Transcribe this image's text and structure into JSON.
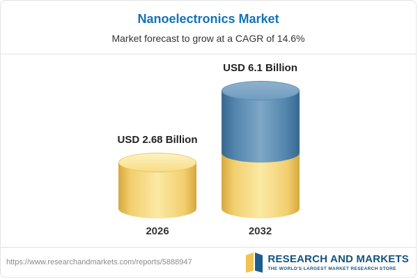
{
  "header": {
    "title": "Nanoelectronics Market",
    "subtitle": "Market forecast to grow at a CAGR of 14.6%"
  },
  "chart_data": {
    "type": "bar",
    "categories": [
      "2026",
      "2032"
    ],
    "values": [
      2.68,
      6.1
    ],
    "value_labels": [
      "USD 2.68 Billion",
      "USD 6.1 Billion"
    ],
    "unit": "USD Billion",
    "title": "Nanoelectronics Market",
    "subtitle": "Market forecast to grow at a CAGR of 14.6%",
    "cagr_pct": 14.6,
    "grid": false,
    "legend_position": "none",
    "notes": "3D cylinder bars; 2032 bar is stacked: yellow base portion equal to 2026 value, blue growth portion on top",
    "colors": {
      "bar_base": "#F2CF70",
      "bar_growth": "#5486AE",
      "title_accent": "#1273B9"
    }
  },
  "footer": {
    "url": "https://www.researchandmarkets.com/reports/5888947",
    "logo_name": "RESEARCH AND MARKETS",
    "logo_tagline": "THE WORLD'S LARGEST MARKET RESEARCH STORE",
    "logo_colors": {
      "text": "#14527D",
      "mark_yellow": "#F2C14E",
      "mark_blue": "#1B5E8E"
    }
  }
}
